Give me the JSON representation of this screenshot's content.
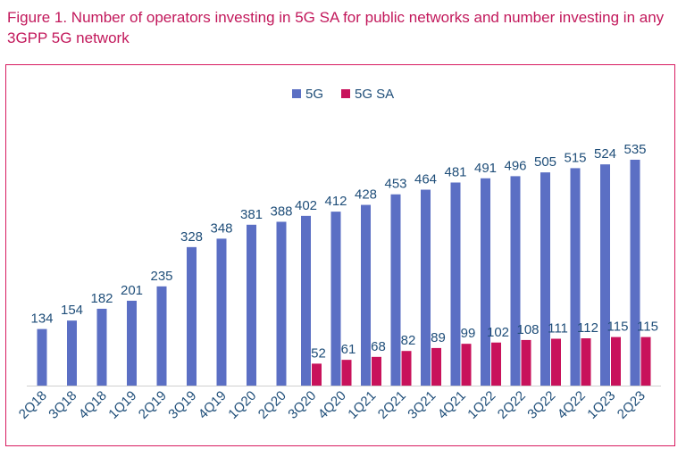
{
  "chart_data": {
    "type": "bar",
    "title": "Figure 1. Number of operators investing in 5G SA for public networks and number investing in any 3GPP 5G network",
    "categories": [
      "2Q18",
      "3Q18",
      "4Q18",
      "1Q19",
      "2Q19",
      "3Q19",
      "4Q19",
      "1Q20",
      "2Q20",
      "3Q20",
      "4Q20",
      "1Q21",
      "2Q21",
      "3Q21",
      "4Q21",
      "1Q22",
      "2Q22",
      "3Q22",
      "4Q22",
      "1Q23",
      "2Q23"
    ],
    "series": [
      {
        "name": "5G",
        "color": "#5b6fc4",
        "values": [
          134,
          154,
          182,
          201,
          235,
          328,
          348,
          381,
          388,
          402,
          412,
          428,
          453,
          464,
          481,
          491,
          496,
          505,
          515,
          524,
          535
        ]
      },
      {
        "name": "5G SA",
        "color": "#c8125b",
        "values": [
          null,
          null,
          null,
          null,
          null,
          null,
          null,
          null,
          null,
          52,
          61,
          68,
          82,
          89,
          99,
          102,
          108,
          111,
          112,
          115,
          115
        ]
      }
    ],
    "ylim": [
      0,
      560
    ],
    "grid": false,
    "legend": "top-center"
  }
}
